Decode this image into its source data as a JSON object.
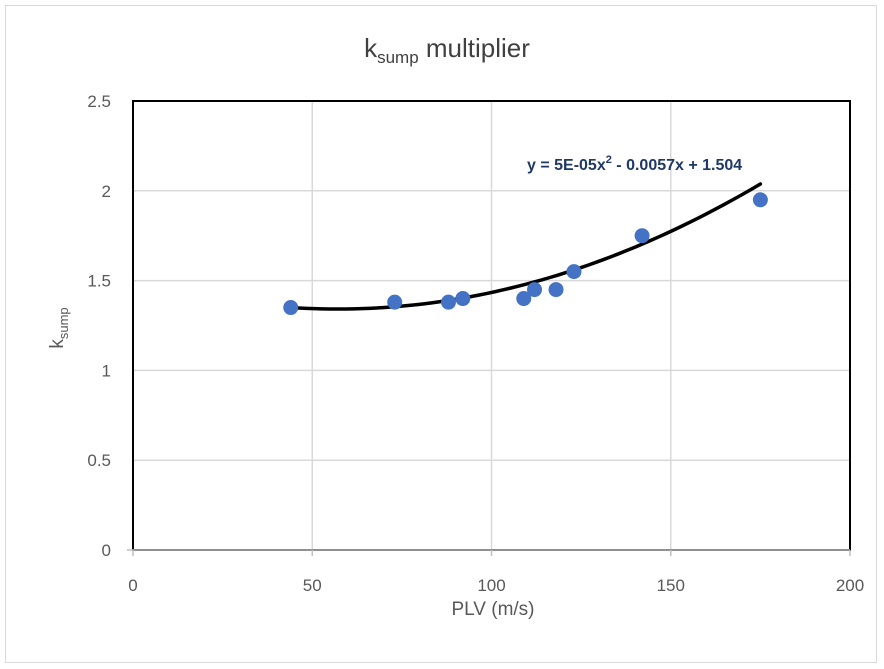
{
  "chart_data": {
    "type": "scatter",
    "title": {
      "main": "k",
      "sub": "sump",
      "rest": " multiplier"
    },
    "xlabel": "PLV (m/s)",
    "ylabel": {
      "main": "k",
      "sub": "sump"
    },
    "xlim": [
      0,
      200
    ],
    "ylim": [
      0,
      2.5
    ],
    "x_ticks": [
      0,
      50,
      100,
      150,
      200
    ],
    "y_ticks": [
      0,
      0.5,
      1,
      1.5,
      2,
      2.5
    ],
    "x_tick_labels": [
      "0",
      "50",
      "100",
      "150",
      "200"
    ],
    "y_tick_labels": [
      "0",
      "0.5",
      "1",
      "1.5",
      "2",
      "2.5"
    ],
    "grid": true,
    "points": [
      {
        "x": 44,
        "y": 1.35
      },
      {
        "x": 73,
        "y": 1.38
      },
      {
        "x": 88,
        "y": 1.38
      },
      {
        "x": 92,
        "y": 1.4
      },
      {
        "x": 109,
        "y": 1.4
      },
      {
        "x": 112,
        "y": 1.45
      },
      {
        "x": 118,
        "y": 1.45
      },
      {
        "x": 123,
        "y": 1.55
      },
      {
        "x": 142,
        "y": 1.75
      },
      {
        "x": 175,
        "y": 1.95
      }
    ],
    "trendline": {
      "type": "polynomial",
      "coefficients": {
        "a": 5e-05,
        "b": -0.0057,
        "c": 1.504
      },
      "x_range": [
        44,
        175
      ],
      "equation": {
        "part1": "y = 5E-05x",
        "sup": "2",
        "part2": " - 0.0057x + 1.504"
      }
    },
    "colors": {
      "point": "#4472c4",
      "trendline": "#000000",
      "grid": "#d9d9d9",
      "equation": "#1f3864"
    }
  }
}
